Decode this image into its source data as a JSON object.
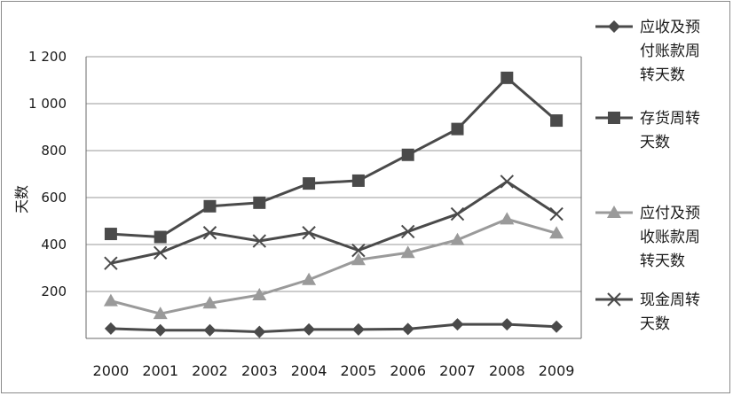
{
  "chart_data": {
    "type": "line",
    "title": "",
    "xlabel": "",
    "ylabel": "天数",
    "ylim": [
      0,
      1200
    ],
    "yticks": [
      "",
      "200",
      "400",
      "600",
      "800",
      "1 000",
      "1 200"
    ],
    "grid": true,
    "legend_position": "right",
    "categories": [
      "2000",
      "2001",
      "2002",
      "2003",
      "2004",
      "2005",
      "2006",
      "2007",
      "2008",
      "2009"
    ],
    "series": [
      {
        "name": "应收及预付账款周转天数",
        "legend_lines": [
          "应收及预",
          "付账款周",
          "转天数"
        ],
        "marker": "diamond",
        "color": "#4a4a4a",
        "values": [
          42,
          35,
          35,
          28,
          38,
          38,
          40,
          60,
          60,
          50
        ]
      },
      {
        "name": "存货周转天数",
        "legend_lines": [
          "存货周转",
          "天数"
        ],
        "marker": "square",
        "color": "#4a4a4a",
        "values": [
          445,
          432,
          563,
          578,
          660,
          672,
          782,
          892,
          1110,
          928
        ]
      },
      {
        "name": "应付及预收账款周转天数",
        "legend_lines": [
          "应付及预",
          "收账款周",
          "转天数"
        ],
        "marker": "triangle",
        "color": "#9a9a9a",
        "values": [
          160,
          105,
          150,
          185,
          250,
          335,
          365,
          420,
          508,
          448
        ]
      },
      {
        "name": "现金周转天数",
        "legend_lines": [
          "现金周转",
          "天数"
        ],
        "marker": "x",
        "color": "#4a4a4a",
        "values": [
          320,
          365,
          450,
          415,
          450,
          375,
          455,
          530,
          668,
          530
        ]
      }
    ]
  }
}
